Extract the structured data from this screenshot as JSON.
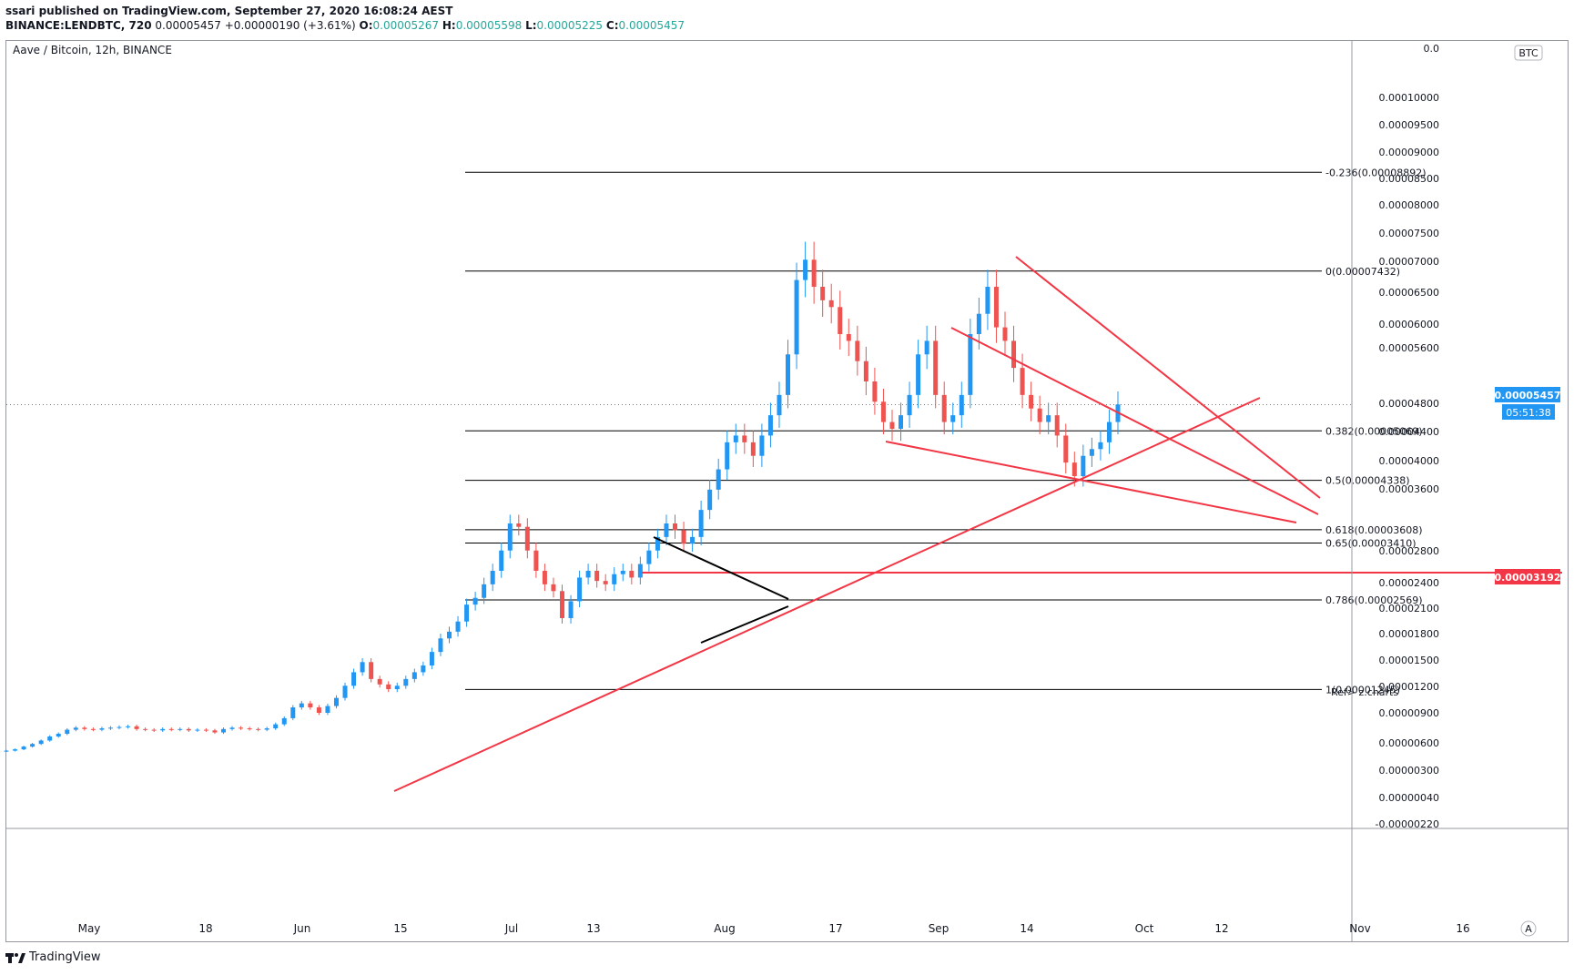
{
  "header": {
    "publisher_line": "ssari published on TradingView.com, September 27, 2020 16:08:24 AEST",
    "symbol_line_prefix": "BINANCE:LENDBTC, 720",
    "last": "0.00005457",
    "change": "+0.00000190 (+3.61%)",
    "o_label": "O:",
    "o_val": "0.00005267",
    "h_label": "H:",
    "h_val": "0.00005598",
    "l_label": "L:",
    "l_val": "0.00005225",
    "c_label": "C:",
    "c_val": "0.00005457"
  },
  "chart_title": "Aave / Bitcoin, 12h, BINANCE",
  "footer": {
    "brand": "TradingView"
  },
  "chart_data": {
    "type": "candlestick",
    "currency_badge": "BTC",
    "scale_button": "A",
    "current_price_label": "0.00005457",
    "countdown_label": "05:51:38",
    "support_price_label": "0.00003192",
    "note": "Ref> z.charts",
    "y_ticks": [
      "0.00010000",
      "0.00009500",
      "0.00009000",
      "0.00008500",
      "0.00008000",
      "0.00007500",
      "0.00007000",
      "0.00006500",
      "0.00006000",
      "0.00005600",
      "0.00004800",
      "0.00004400",
      "0.00004000",
      "0.00003600",
      "0.00002800",
      "0.00002400",
      "0.00002100",
      "0.00001800",
      "0.00001500",
      "0.00001200",
      "0.00000900",
      "0.00000600",
      "0.00000300",
      "0.00000040",
      "-0.00000220"
    ],
    "x_ticks": [
      "May",
      "18",
      "Jun",
      "15",
      "Jul",
      "13",
      "Aug",
      "17",
      "Sep",
      "14",
      "Oct",
      "12",
      "Nov",
      "16"
    ],
    "fib_levels": [
      {
        "label": "-0.236(0.00008892)",
        "value": 8.892e-05
      },
      {
        "label": "0(0.00007432)",
        "value": 7.432e-05
      },
      {
        "label": "0.382(0.00005069)",
        "value": 5.069e-05
      },
      {
        "label": "0.5(0.00004338)",
        "value": 4.338e-05
      },
      {
        "label": "0.618(0.00003608)",
        "value": 3.608e-05
      },
      {
        "label": "0.65(0.00003410)",
        "value": 3.41e-05
      },
      {
        "label": "0.786(0.00002569)",
        "value": 2.569e-05
      },
      {
        "label": "1(0.00001245)",
        "value": 1.245e-05
      }
    ],
    "series": [
      {
        "name": "LENDBTC close (approx.)",
        "values": [
          3.4e-06,
          3.6e-06,
          4e-06,
          4.4e-06,
          4.9e-06,
          5.5e-06,
          5.9e-06,
          6.5e-06,
          6.8e-06,
          6.6e-06,
          6.5e-06,
          6.7e-06,
          6.8e-06,
          6.9e-06,
          7e-06,
          6.6e-06,
          6.5e-06,
          6.4e-06,
          6.6e-06,
          6.5e-06,
          6.6e-06,
          6.4e-06,
          6.5e-06,
          6.4e-06,
          6.1e-06,
          6.6e-06,
          6.8e-06,
          6.7e-06,
          6.6e-06,
          6.5e-06,
          6.7e-06,
          7.3e-06,
          8.2e-06,
          9.8e-06,
          1.04e-05,
          9.8e-06,
          9e-06,
          1e-05,
          1.12e-05,
          1.3e-05,
          1.5e-05,
          1.65e-05,
          1.4e-05,
          1.32e-05,
          1.25e-05,
          1.3e-05,
          1.4e-05,
          1.5e-05,
          1.6e-05,
          1.8e-05,
          2e-05,
          2.1e-05,
          2.25e-05,
          2.5e-05,
          2.6e-05,
          2.8e-05,
          3e-05,
          3.3e-05,
          3.7e-05,
          3.65e-05,
          3.3e-05,
          3e-05,
          2.8e-05,
          2.7e-05,
          2.3e-05,
          2.55e-05,
          2.9e-05,
          3e-05,
          2.85e-05,
          2.8e-05,
          2.95e-05,
          3e-05,
          2.9e-05,
          3.1e-05,
          3.3e-05,
          3.5e-05,
          3.7e-05,
          3.6e-05,
          3.4e-05,
          3.5e-05,
          3.9e-05,
          4.2e-05,
          4.5e-05,
          4.9e-05,
          5e-05,
          4.9e-05,
          4.7e-05,
          5e-05,
          5.3e-05,
          5.6e-05,
          6.2e-05,
          7.3e-05,
          7.6e-05,
          7.2e-05,
          7e-05,
          6.9e-05,
          6.5e-05,
          6.4e-05,
          6.1e-05,
          5.8e-05,
          5.5e-05,
          5.2e-05,
          5.1e-05,
          5.3e-05,
          5.6e-05,
          6.2e-05,
          6.4e-05,
          5.6e-05,
          5.2e-05,
          5.3e-05,
          5.6e-05,
          6.5e-05,
          6.8e-05,
          7.2e-05,
          6.6e-05,
          6.4e-05,
          6e-05,
          5.6e-05,
          5.4e-05,
          5.2e-05,
          5.3e-05,
          5e-05,
          4.6e-05,
          4.4e-05,
          4.7e-05,
          4.8e-05,
          4.9e-05,
          5.2e-05,
          5.46e-05
        ]
      }
    ],
    "title": "",
    "xlabel": "",
    "ylabel": "",
    "ylim": [
      -2.2e-06,
      0.0001
    ],
    "colors": {
      "up": "#2196f3",
      "down": "#ef5350",
      "trend": "#f23645",
      "pattern": "#000000",
      "fib": "#000000",
      "badge": "#2196f3",
      "support": "#f23645",
      "price_line": "#2196f3"
    },
    "grid": false,
    "legend": "none"
  }
}
